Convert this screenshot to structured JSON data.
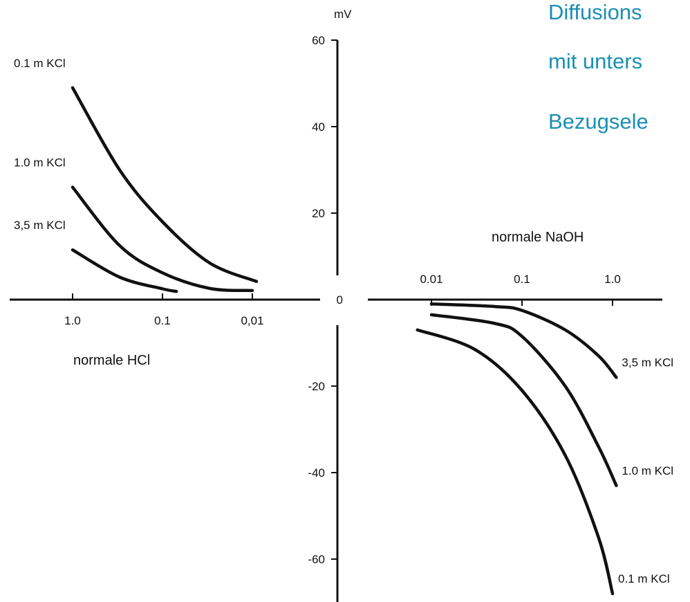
{
  "title_lines": [
    "Diffusions",
    "mit unters",
    "Bezugsele"
  ],
  "colors": {
    "title": "#1a8fb5",
    "ink": "#111111",
    "background": "#ffffff"
  },
  "chart_data": {
    "type": "line",
    "y_unit": "mV",
    "ylim": [
      -70,
      60
    ],
    "y_ticks": [
      "60",
      "40",
      "20",
      "0",
      "-20",
      "-40",
      "-60"
    ],
    "grid": false,
    "x_scale": "log",
    "panels": [
      {
        "id": "hcl",
        "xlabel": "normale HCl",
        "x_ticks": [
          {
            "label": "1.0",
            "value": 1.0
          },
          {
            "label": "0.1",
            "value": 0.1
          },
          {
            "label": "0,01",
            "value": 0.01
          }
        ],
        "series": [
          {
            "name": "0.1 m KCl",
            "points": [
              [
                1.0,
                49
              ],
              [
                0.3,
                30
              ],
              [
                0.1,
                18
              ],
              [
                0.03,
                8.5
              ],
              [
                0.009,
                4.2
              ]
            ]
          },
          {
            "name": "1.0 m KCl",
            "points": [
              [
                1.0,
                26
              ],
              [
                0.3,
                12.5
              ],
              [
                0.1,
                6.2
              ],
              [
                0.03,
                2.6
              ],
              [
                0.01,
                2.1
              ]
            ]
          },
          {
            "name": "3,5 m KCl",
            "points": [
              [
                1.0,
                11.5
              ],
              [
                0.3,
                5.2
              ],
              [
                0.1,
                2.5
              ],
              [
                0.07,
                1.9
              ]
            ]
          }
        ]
      },
      {
        "id": "naoh",
        "xlabel": "normale NaOH",
        "x_ticks": [
          {
            "label": "0.01",
            "value": 0.01
          },
          {
            "label": "0.1",
            "value": 0.1
          },
          {
            "label": "1.0",
            "value": 1.0
          }
        ],
        "series": [
          {
            "name": "3,5 m KCl",
            "points": [
              [
                0.01,
                -1.0
              ],
              [
                0.05,
                -1.6
              ],
              [
                0.1,
                -2.5
              ],
              [
                0.3,
                -7.0
              ],
              [
                0.7,
                -13
              ],
              [
                1.1,
                -18
              ]
            ]
          },
          {
            "name": "1.0 m KCl",
            "points": [
              [
                0.01,
                -3.5
              ],
              [
                0.05,
                -5.5
              ],
              [
                0.1,
                -8.5
              ],
              [
                0.3,
                -20
              ],
              [
                0.7,
                -34
              ],
              [
                1.1,
                -43
              ]
            ]
          },
          {
            "name": "0.1 m KCl",
            "points": [
              [
                0.007,
                -7.0
              ],
              [
                0.03,
                -11.5
              ],
              [
                0.1,
                -21
              ],
              [
                0.3,
                -36
              ],
              [
                0.7,
                -55
              ],
              [
                1.0,
                -68
              ]
            ]
          }
        ]
      }
    ]
  }
}
